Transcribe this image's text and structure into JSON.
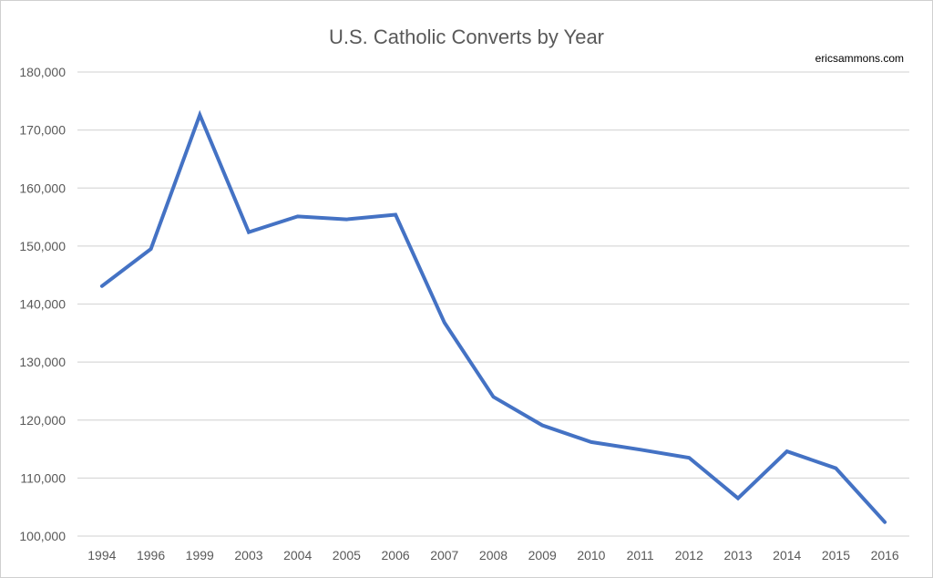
{
  "chart_data": {
    "type": "line",
    "title": "U.S. Catholic Converts by Year",
    "annotation": "ericsammons.com",
    "xlabel": "",
    "ylabel": "",
    "categories": [
      "1994",
      "1996",
      "1999",
      "2003",
      "2004",
      "2005",
      "2006",
      "2007",
      "2008",
      "2009",
      "2010",
      "2011",
      "2012",
      "2013",
      "2014",
      "2015",
      "2016"
    ],
    "values": [
      143100,
      149500,
      172600,
      152400,
      155100,
      154600,
      155400,
      136800,
      124000,
      119100,
      116200,
      114900,
      113500,
      106500,
      114600,
      111700,
      102400
    ],
    "ylim": [
      100000,
      180000
    ],
    "yticks": [
      100000,
      110000,
      120000,
      130000,
      140000,
      150000,
      160000,
      170000,
      180000
    ],
    "ytick_labels": [
      "100,000",
      "110,000",
      "120,000",
      "130,000",
      "140,000",
      "150,000",
      "160,000",
      "170,000",
      "180,000"
    ],
    "grid": "horizontal",
    "legend": "none",
    "line_color": "#4472C4",
    "grid_color": "#D9D9D9"
  }
}
